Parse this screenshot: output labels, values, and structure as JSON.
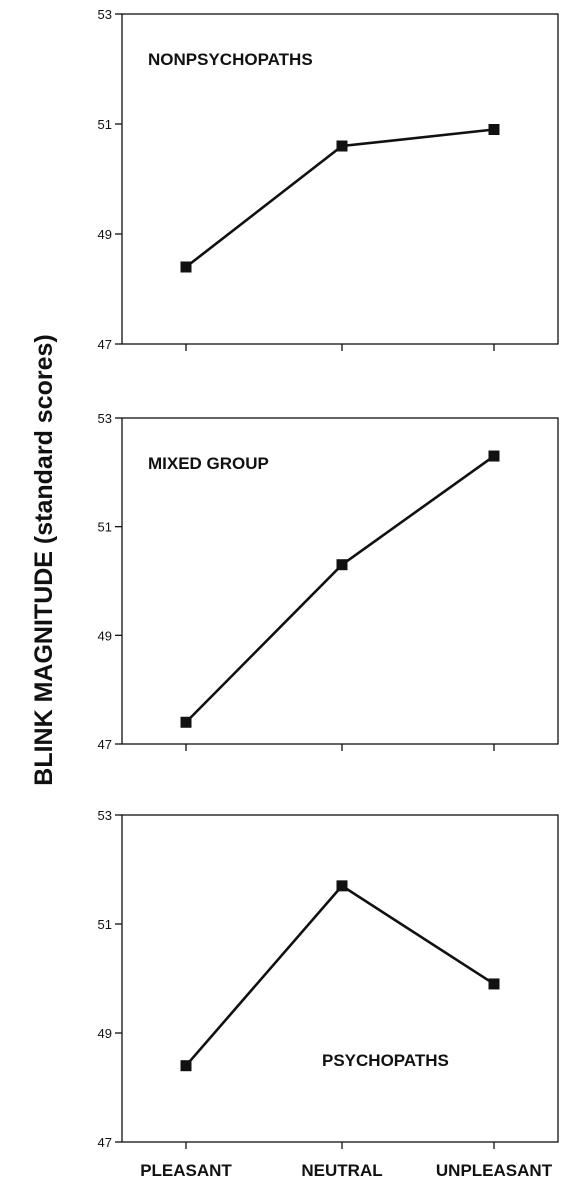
{
  "chart_data": {
    "type": "line",
    "ylabel": "BLINK MAGNITUDE (standard scores)",
    "categories": [
      "PLEASANT",
      "NEUTRAL",
      "UNPLEASANT"
    ],
    "ylim": [
      47,
      53
    ],
    "yticks": [
      "47",
      "49",
      "51",
      "53"
    ],
    "panels": [
      {
        "title": "NONPSYCHOPATHS",
        "title_position": "top-left",
        "values": [
          48.4,
          50.6,
          50.9
        ]
      },
      {
        "title": "MIXED GROUP",
        "title_position": "top-left",
        "values": [
          47.4,
          50.3,
          52.3
        ]
      },
      {
        "title": "PSYCHOPATHS",
        "title_position": "bottom-right",
        "values": [
          48.4,
          51.7,
          49.9
        ]
      }
    ]
  }
}
